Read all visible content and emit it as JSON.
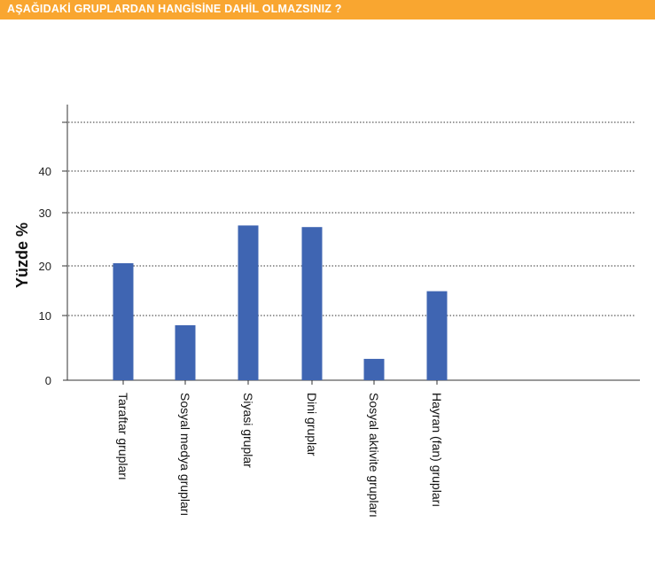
{
  "header": {
    "title": "AŞAĞIDAKİ GRUPLARDAN HANGİSİNE DAHİL OLMAZSINIZ ?"
  },
  "colors": {
    "header_bg": "#f9a630",
    "bar": "#3f65b2"
  },
  "chart_data": {
    "type": "bar",
    "categories": [
      "Taraftar grupları",
      "Sosyal medya grupları",
      "Siyasi gruplar",
      "Dini gruplar",
      "Sosyal aktivite grupları",
      "Hayran (fan) grupları"
    ],
    "values": [
      20.5,
      8.5,
      27.6,
      27.3,
      3.3,
      14.9
    ],
    "ylabel": "Yüzde %",
    "yticks": [
      0,
      10,
      20,
      30,
      40
    ],
    "ylim": [
      0,
      50
    ],
    "grid": "dotted horizontal",
    "tick_labels_rotated": true
  }
}
